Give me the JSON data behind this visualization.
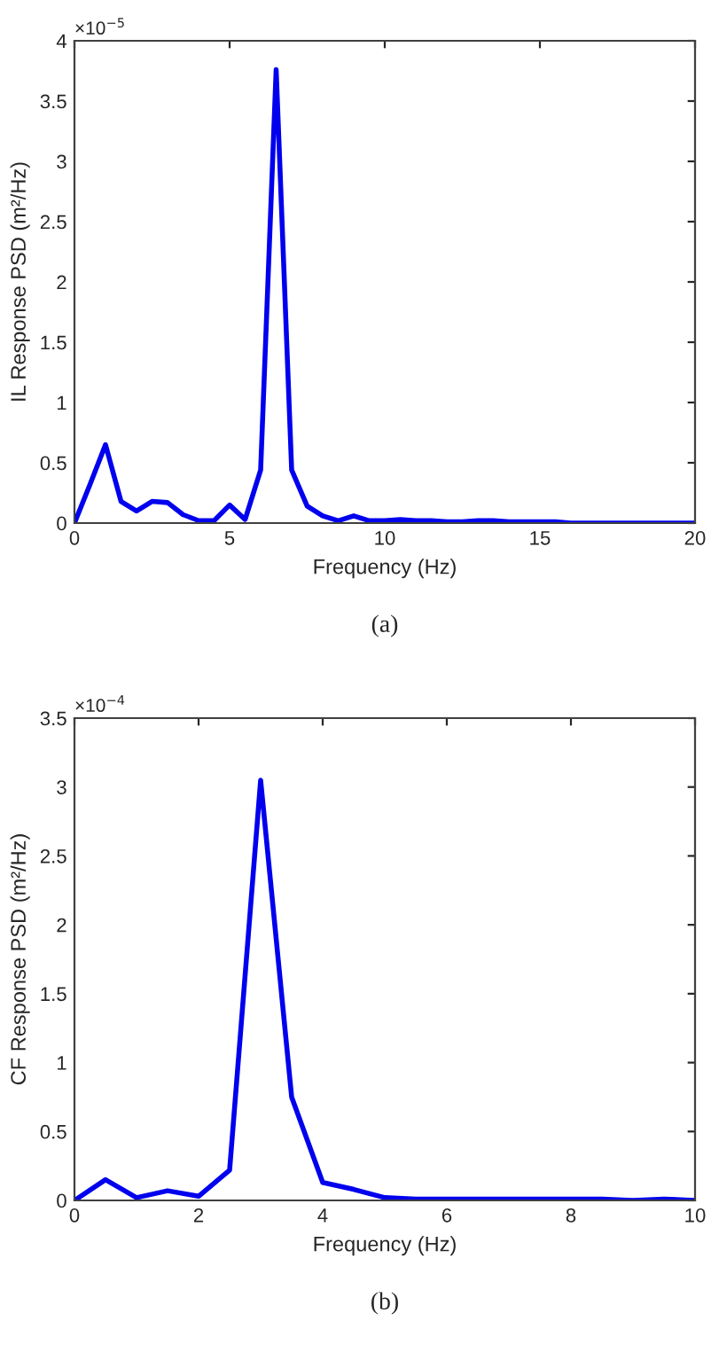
{
  "chart_data": [
    {
      "type": "line",
      "xlabel": "Frequency (Hz)",
      "ylabel": "IL Response PSD (m²/Hz)",
      "annotations": [
        "×10$^{−5}$",
        "(a)"
      ],
      "xlim": [
        0,
        20
      ],
      "xticks": [
        0,
        5,
        10,
        15,
        20
      ],
      "ylim": [
        0,
        4
      ],
      "yticks": [
        0,
        0.5,
        1,
        1.5,
        2,
        2.5,
        3,
        3.5,
        4
      ],
      "grid": false,
      "series": [
        {
          "color": "#0000ee",
          "x": [
            0,
            0.5,
            1,
            1.5,
            2,
            2.5,
            3,
            3.5,
            4,
            4.5,
            5,
            5.5,
            6,
            6.5,
            7,
            7.5,
            8,
            8.5,
            9,
            9.5,
            10,
            10.5,
            11,
            11.5,
            12,
            12.5,
            13,
            13.5,
            14,
            14.5,
            15,
            15.5,
            16,
            17,
            18,
            19,
            20
          ],
          "values": [
            0,
            0.32,
            0.65,
            0.18,
            0.1,
            0.18,
            0.17,
            0.07,
            0.02,
            0.02,
            0.15,
            0.03,
            0.44,
            3.76,
            0.44,
            0.14,
            0.06,
            0.02,
            0.06,
            0.02,
            0.02,
            0.03,
            0.02,
            0.02,
            0.01,
            0.01,
            0.02,
            0.02,
            0.01,
            0.01,
            0.01,
            0.01,
            0,
            0,
            0,
            0,
            0
          ]
        }
      ]
    },
    {
      "type": "line",
      "xlabel": "Frequency (Hz)",
      "ylabel": "CF Response PSD (m²/Hz)",
      "annotations": [
        "×10$^{−4}$",
        "(b)"
      ],
      "xlim": [
        0,
        10
      ],
      "xticks": [
        0,
        2,
        4,
        6,
        8,
        10
      ],
      "ylim": [
        0,
        3.5
      ],
      "yticks": [
        0,
        0.5,
        1,
        1.5,
        2,
        2.5,
        3,
        3.5
      ],
      "grid": false,
      "series": [
        {
          "color": "#0000ee",
          "x": [
            0,
            0.5,
            1,
            1.5,
            2,
            2.5,
            3,
            3.5,
            4,
            4.5,
            5,
            5.5,
            6,
            6.5,
            7,
            7.5,
            8,
            8.5,
            9,
            9.5,
            10
          ],
          "values": [
            0,
            0.15,
            0.02,
            0.07,
            0.03,
            0.22,
            3.05,
            0.75,
            0.13,
            0.08,
            0.02,
            0.01,
            0.01,
            0.01,
            0.01,
            0.01,
            0.01,
            0.01,
            0,
            0.01,
            0
          ]
        }
      ]
    }
  ]
}
